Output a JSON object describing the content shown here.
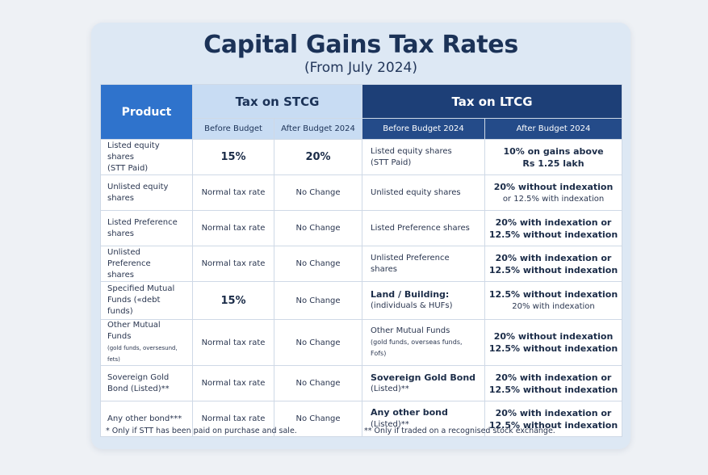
{
  "title": "Capital Gains Tax Rates",
  "subtitle": "(From July 2024)",
  "headers": {
    "product": "Product",
    "stcg": "Tax on STCG",
    "ltcg": "Tax on LTCG",
    "stcg_before": "Before Budget",
    "stcg_after": "After Budget 2024",
    "ltcg_before": "Before Budget 2024",
    "ltcg_after": "After Budget 2024"
  },
  "rows": [
    {
      "product": [
        "Listed equity shares",
        "(STT Paid)"
      ],
      "stcg_before": "15%",
      "stcg_after": "20%",
      "ltcg_product": [
        "Listed equity shares",
        "(STT Paid)"
      ],
      "ltcg_after": [
        "10% on gains above",
        "Rs 1.25 lakh"
      ]
    },
    {
      "product": [
        "Unlisted equity",
        "shares"
      ],
      "stcg_before": "Normal tax rate",
      "stcg_after": "No Change",
      "ltcg_product": [
        "Unlisted equity shares",
        ""
      ],
      "ltcg_after": [
        "20% without indexation",
        "or 12.5% with indexation"
      ]
    },
    {
      "product": [
        "Listed Preference",
        "shares"
      ],
      "stcg_before": "Normal tax rate",
      "stcg_after": "No Change",
      "ltcg_product": [
        "Listed Preference shares",
        ""
      ],
      "ltcg_after": [
        "20% with indexation or",
        "12.5% without indexation"
      ]
    },
    {
      "product": [
        "Unlisted Preference",
        "shares"
      ],
      "stcg_before": "Normal tax rate",
      "stcg_after": "No Change",
      "ltcg_product": [
        "Unlisted Preference shares",
        ""
      ],
      "ltcg_after": [
        "20% with indexation or",
        "12.5% without indexation"
      ]
    },
    {
      "product": [
        "Specified Mutual",
        "Funds («debt funds)"
      ],
      "stcg_before": "15%",
      "stcg_after": "No Change",
      "ltcg_product": [
        "Land / Building:",
        "(individuals & HUFs)"
      ],
      "ltcg_after": [
        "12.5% without indexation",
        "20% with indexation"
      ]
    },
    {
      "product": [
        "Other Mutual Funds",
        "(gold funds, oversesund, fets)"
      ],
      "stcg_before": "Normal tax rate",
      "stcg_after": "No Change",
      "ltcg_product": [
        "Other Mutual Funds",
        "(gold funds, overseas funds, Fofs)"
      ],
      "ltcg_after": [
        "20% without indexation",
        "12.5% without indexation"
      ]
    },
    {
      "product": [
        "Sovereign Gold",
        "Bond (Listed)**"
      ],
      "stcg_before": "Normal tax rate",
      "stcg_after": "No Change",
      "ltcg_product": [
        "Sovereign Gold Bond",
        "(Listed)**"
      ],
      "ltcg_after": [
        "20% with indexation or",
        "12.5% without indexation"
      ]
    },
    {
      "product": [
        "Any other bond***",
        ""
      ],
      "stcg_before": "Normal tax rate",
      "stcg_after": "No Change",
      "ltcg_product": [
        "Any other bond",
        "(Listed)**"
      ],
      "ltcg_after": [
        "20% with indexation or",
        "12.5% without indexation"
      ]
    }
  ],
  "footnotes": {
    "left": "* Only if STT has been paid on purchase and sale.",
    "right": "** Only if traded on a recognised stock exchange."
  }
}
